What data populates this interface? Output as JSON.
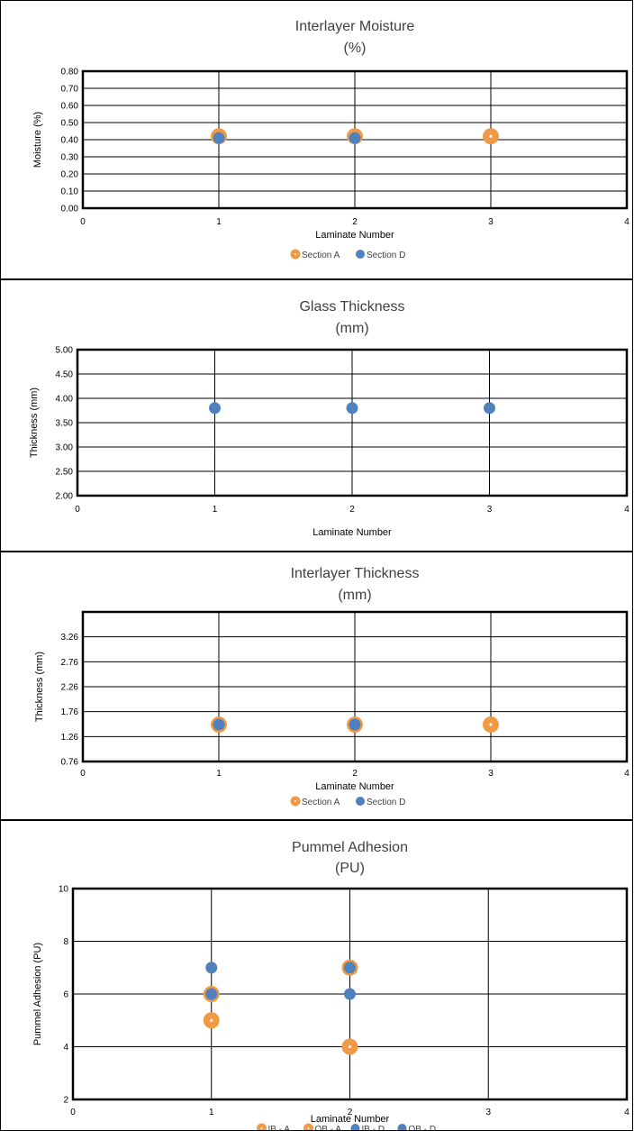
{
  "chart_data": [
    {
      "type": "scatter",
      "title": "Interlayer Moisture",
      "subtitle": "(%)",
      "xlabel": "Laminate Number",
      "ylabel": "Moisture (%)",
      "xlim": [
        0,
        4
      ],
      "ylim": [
        0,
        0.8
      ],
      "xticks": [
        "0",
        "1",
        "2",
        "3",
        "4"
      ],
      "yticks": [
        "0.00",
        "0.10",
        "0.20",
        "0.30",
        "0.40",
        "0.50",
        "0.60",
        "0.70",
        "0.80"
      ],
      "grid": true,
      "legend_position": "bottom",
      "series": [
        {
          "name": "Section A",
          "color": "#f09a45",
          "x": [
            1,
            2,
            3
          ],
          "y": [
            0.42,
            0.42,
            0.42
          ]
        },
        {
          "name": "Section D",
          "color": "#4f81bd",
          "x": [
            1,
            2
          ],
          "y": [
            0.41,
            0.41
          ]
        }
      ]
    },
    {
      "type": "scatter",
      "title": "Glass Thickness",
      "subtitle": "(mm)",
      "xlabel": "Laminate Number",
      "ylabel": "Thickness (mm)",
      "xlim": [
        0,
        4
      ],
      "ylim": [
        2.0,
        5.0
      ],
      "xticks": [
        "0",
        "1",
        "2",
        "3",
        "4"
      ],
      "yticks": [
        "2.00",
        "2.50",
        "3.00",
        "3.50",
        "4.00",
        "4.50",
        "5.00"
      ],
      "grid": true,
      "series": [
        {
          "color": "#4f81bd",
          "x": [
            1,
            2,
            3
          ],
          "y": [
            3.8,
            3.8,
            3.8
          ]
        }
      ]
    },
    {
      "type": "scatter",
      "title": "Interlayer Thickness",
      "subtitle": "(mm)",
      "xlabel": "Laminate Number",
      "ylabel": "Thickness (mm)",
      "xlim": [
        0,
        4
      ],
      "ylim": [
        0.76,
        3.76
      ],
      "xticks": [
        "0",
        "1",
        "2",
        "3",
        "4"
      ],
      "yticks": [
        "0.76",
        "1.26",
        "1.76",
        "2.26",
        "2.76",
        "3.26"
      ],
      "grid": true,
      "legend_position": "bottom",
      "series": [
        {
          "name": "Section A",
          "color": "#f09a45",
          "x": [
            1,
            2,
            3
          ],
          "y": [
            1.5,
            1.5,
            1.5
          ]
        },
        {
          "name": "Section D",
          "color": "#4f81bd",
          "x": [
            1,
            2
          ],
          "y": [
            1.5,
            1.5
          ]
        }
      ]
    },
    {
      "type": "scatter",
      "title": "Pummel Adhesion",
      "subtitle": "(PU)",
      "xlabel": "Laminate Number",
      "ylabel": "Pummel Adhesion (PU)",
      "xlim": [
        0,
        4
      ],
      "ylim": [
        2,
        10
      ],
      "xticks": [
        "0",
        "1",
        "2",
        "3",
        "4"
      ],
      "yticks": [
        "2",
        "4",
        "6",
        "8",
        "10"
      ],
      "grid": true,
      "legend_position": "bottom",
      "series": [
        {
          "name": "IB - A",
          "color": "#f09a45",
          "x": [
            1,
            2
          ],
          "y": [
            5,
            4
          ]
        },
        {
          "name": "OB - A",
          "color": "#f09a45",
          "x": [
            1,
            2
          ],
          "y": [
            6,
            7
          ]
        },
        {
          "name": "IB - D",
          "color": "#4f81bd",
          "x": [
            1,
            2
          ],
          "y": [
            7,
            6
          ]
        },
        {
          "name": "OB - D",
          "color": "#4f81bd",
          "x": [
            1,
            2
          ],
          "y": [
            6,
            7
          ]
        }
      ]
    }
  ]
}
